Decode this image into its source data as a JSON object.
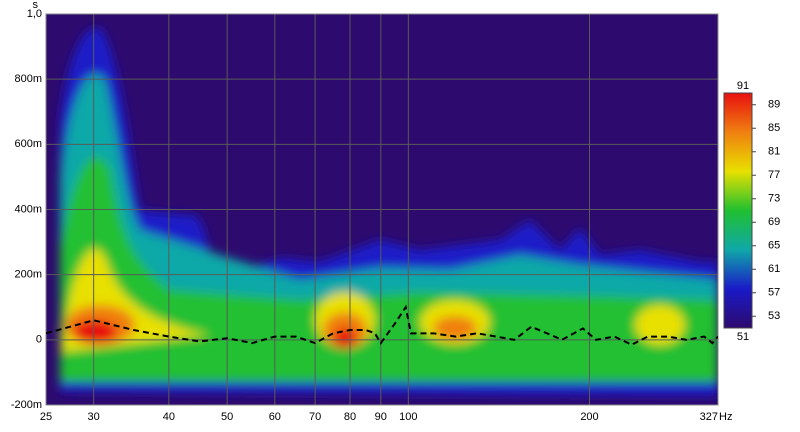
{
  "chart_data": {
    "type": "line",
    "x_unit": "Hz",
    "y_unit": "s",
    "x": [
      25,
      30,
      35,
      40,
      45,
      50,
      55,
      60,
      65,
      70,
      75,
      80,
      85,
      88,
      90,
      95,
      99,
      101,
      110,
      120,
      130,
      140,
      150,
      160,
      170,
      180,
      195,
      205,
      220,
      235,
      250,
      270,
      290,
      310,
      320,
      327
    ],
    "series": [
      {
        "color": "#000000",
        "values": [
          0.02,
          0.06,
          0.03,
          0.01,
          -0.005,
          0.005,
          -0.01,
          0.01,
          0.01,
          -0.01,
          0.02,
          0.03,
          0.03,
          0.02,
          -0.01,
          0.05,
          0.1,
          0.02,
          0.02,
          0.01,
          0.02,
          0.01,
          0.0,
          0.04,
          0.02,
          0.0,
          0.035,
          0.0,
          0.01,
          -0.015,
          0.01,
          0.01,
          0.0,
          0.01,
          -0.01,
          0.01
        ]
      }
    ],
    "xlim": [
      25,
      327
    ],
    "xticks": [
      25,
      30,
      40,
      50,
      60,
      70,
      80,
      90,
      100,
      200,
      327
    ],
    "xscale": "log",
    "ylim": [
      -0.2,
      1.0
    ],
    "yticks": [
      {
        "value": -0.2,
        "label": "-200m"
      },
      0,
      {
        "value": 0.2,
        "label": "200m"
      },
      {
        "value": 0.4,
        "label": "400m"
      },
      {
        "value": 0.6,
        "label": "600m"
      },
      {
        "value": 0.8,
        "label": "800m"
      },
      {
        "value": 1.0,
        "label": "1,0"
      }
    ],
    "grid": true,
    "background": "#2d0a6e",
    "zlim": [
      51,
      91
    ],
    "zticks": [
      53,
      57,
      61,
      65,
      69,
      73,
      77,
      81,
      85,
      89
    ],
    "colorscale": [
      "#2d0a6e",
      "#1a1ac8",
      "#10a8a8",
      "#20c030",
      "#e8e000",
      "#f08010",
      "#e81010"
    ]
  }
}
